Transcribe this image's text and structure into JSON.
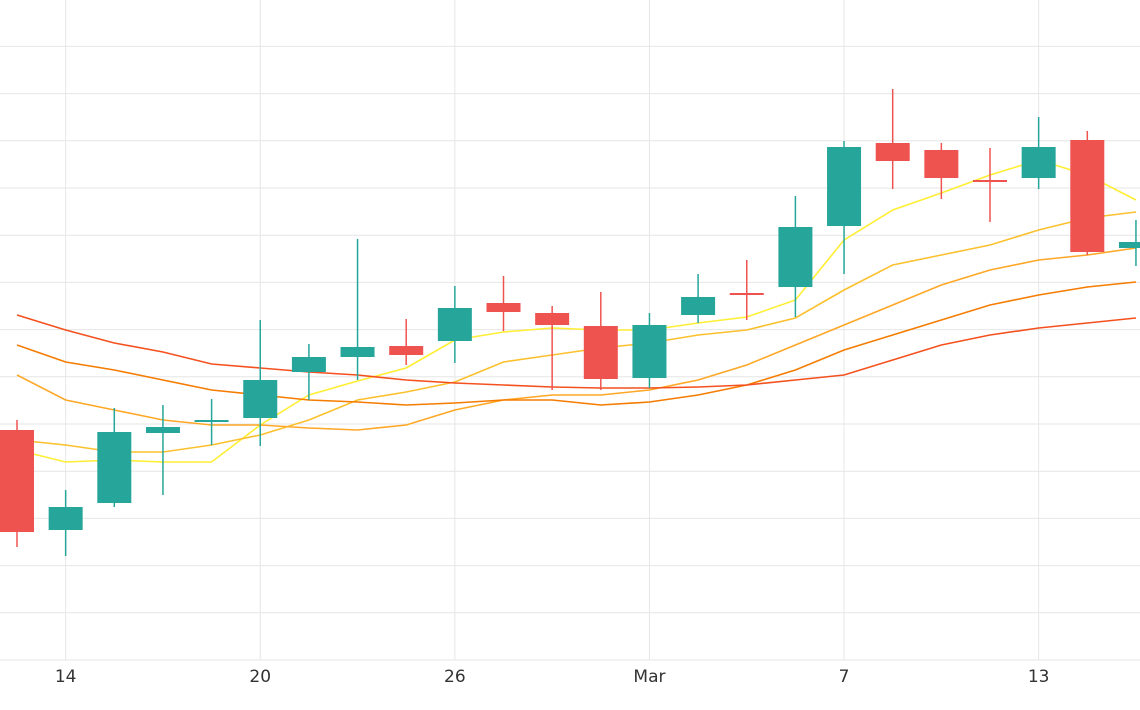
{
  "chart_data": {
    "type": "candlestick",
    "categories": [
      null,
      "14",
      null,
      null,
      null,
      "20",
      null,
      null,
      null,
      "26",
      null,
      null,
      null,
      "Mar",
      null,
      null,
      null,
      "7",
      null,
      null,
      null,
      "13",
      null,
      null
    ],
    "open": [
      230,
      130,
      157,
      227,
      238,
      242,
      288,
      303,
      314,
      319,
      357,
      347,
      334,
      282,
      345,
      367,
      373,
      434,
      517,
      510,
      480,
      482,
      520,
      412
    ],
    "high": [
      240,
      170,
      252,
      255,
      261,
      340,
      316,
      421,
      341,
      374,
      384,
      354,
      368,
      347,
      386,
      400,
      464,
      519,
      571,
      517,
      512,
      543,
      529,
      440
    ],
    "low": [
      113,
      104,
      153,
      165,
      215,
      214,
      260,
      280,
      295,
      297,
      329,
      270,
      270,
      272,
      337,
      340,
      343,
      386,
      471,
      461,
      438,
      471,
      405,
      394
    ],
    "close": [
      128,
      153,
      228,
      233,
      240,
      280,
      303,
      313,
      305,
      352,
      348,
      335,
      281,
      335,
      363,
      365,
      433,
      513,
      499,
      482,
      478,
      513,
      408,
      418
    ],
    "up_color": "#26a69a",
    "down_color": "#ef5350",
    "series": [
      {
        "color": "#ffee33",
        "values": [
          210,
          198,
          200,
          198,
          198,
          235,
          265,
          279,
          292,
          320,
          328,
          332,
          330,
          330,
          337,
          343,
          360,
          420,
          450,
          467,
          485,
          500,
          485,
          460
        ]
      },
      {
        "color": "#fbc02d",
        "values": [
          220,
          215,
          208,
          208,
          215,
          225,
          240,
          260,
          268,
          278,
          298,
          305,
          312,
          317,
          325,
          330,
          342,
          370,
          395,
          405,
          415,
          430,
          442,
          448
        ]
      },
      {
        "color": "#ffa726",
        "values": [
          285,
          260,
          250,
          240,
          235,
          235,
          232,
          230,
          235,
          250,
          260,
          265,
          265,
          270,
          280,
          295,
          315,
          335,
          355,
          375,
          390,
          400,
          405,
          412
        ]
      },
      {
        "color": "#f57c00",
        "values": [
          315,
          298,
          290,
          280,
          270,
          265,
          260,
          258,
          255,
          257,
          260,
          260,
          255,
          258,
          265,
          275,
          290,
          310,
          325,
          340,
          355,
          365,
          373,
          378
        ]
      },
      {
        "color": "#f4511e",
        "values": [
          345,
          330,
          317,
          308,
          296,
          292,
          288,
          285,
          280,
          277,
          275,
          273,
          272,
          272,
          273,
          275,
          280,
          285,
          300,
          315,
          325,
          332,
          337,
          342
        ]
      }
    ],
    "ylim": [
      0,
      660
    ],
    "yticks": [
      0,
      47.2,
      94.4,
      141.6,
      188.8,
      236,
      283.2,
      330.4,
      377.6,
      424.8,
      472,
      519.2,
      566.4,
      613.6
    ],
    "grid": true
  }
}
